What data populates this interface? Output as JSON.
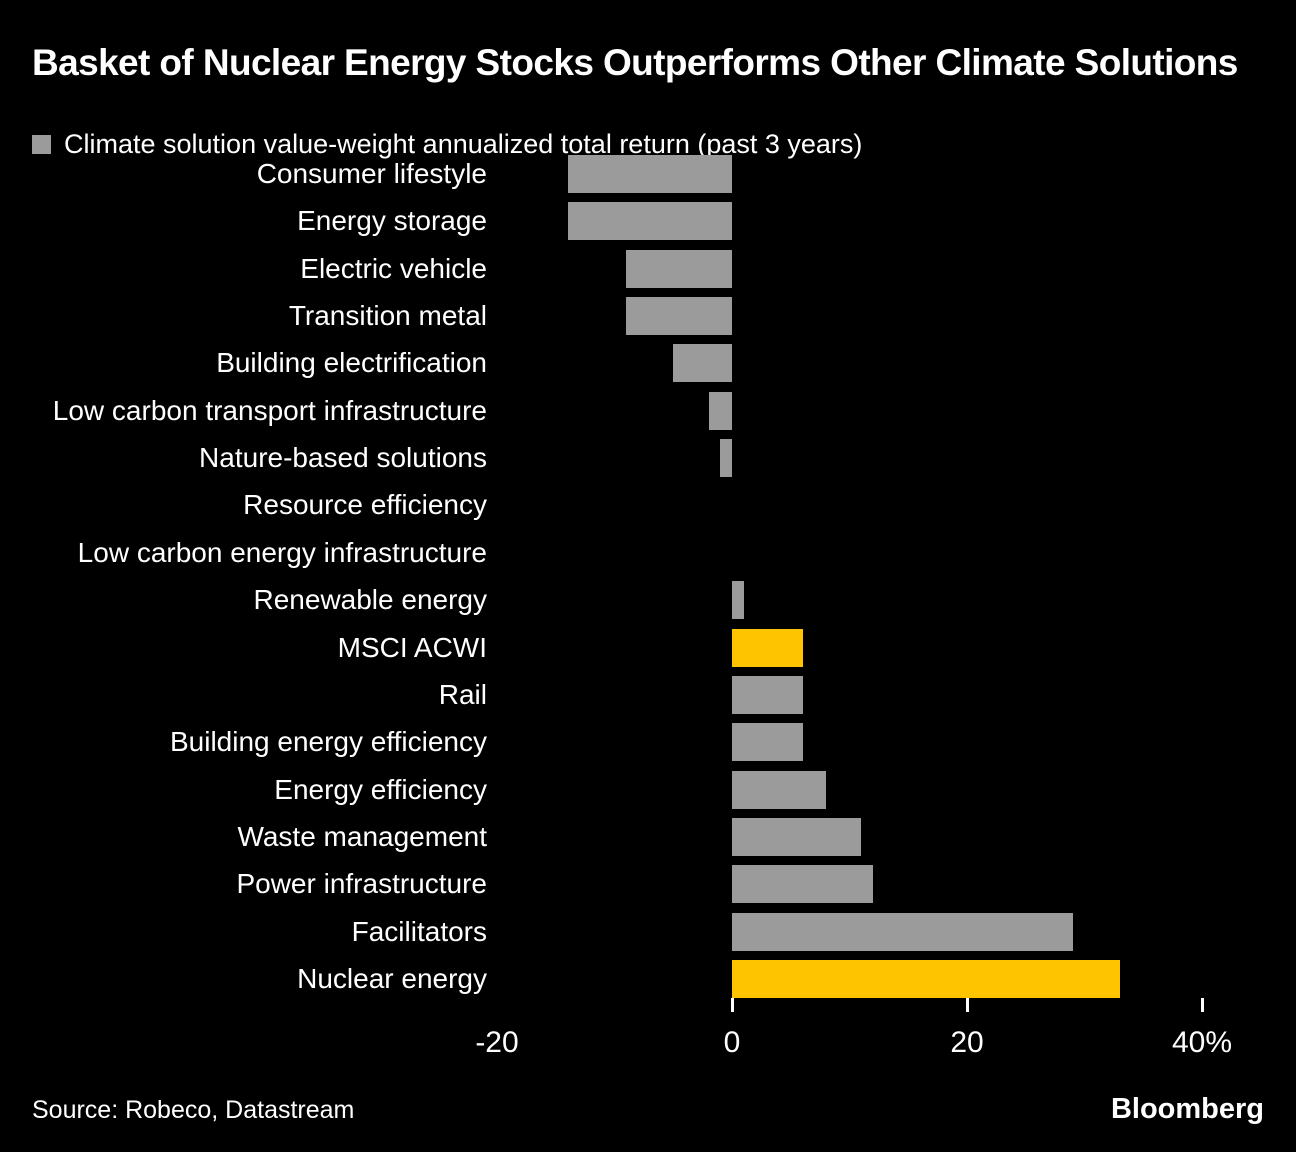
{
  "header": {
    "title": "Basket of Nuclear Energy Stocks Outperforms Other Climate Solutions",
    "legend_label": "Climate solution value-weight annualized total return (past 3 years)"
  },
  "colors": {
    "background": "#000000",
    "text": "#FFFFFF",
    "bar_gray": "#9B9B9B",
    "bar_highlight": "#FFC400"
  },
  "chart_data": {
    "type": "bar",
    "orientation": "horizontal",
    "title": "Basket of Nuclear Energy Stocks Outperforms Other Climate Solutions",
    "legend_entries": [
      "Climate solution value-weight annualized total return (past 3 years)"
    ],
    "legend_position": "top-left",
    "unit": "%",
    "grid": false,
    "categories": [
      "Consumer lifestyle",
      "Energy storage",
      "Electric vehicle",
      "Transition metal",
      "Building electrification",
      "Low carbon transport infrastructure",
      "Nature-based solutions",
      "Resource efficiency",
      "Low carbon energy infrastructure",
      "Renewable energy",
      "MSCI ACWI",
      "Rail",
      "Building energy efficiency",
      "Energy efficiency",
      "Waste management",
      "Power infrastructure",
      "Facilitators",
      "Nuclear energy"
    ],
    "values": [
      -14,
      -14,
      -9,
      -9,
      -5,
      -2,
      -1,
      0,
      0,
      1,
      6,
      6,
      6,
      8,
      11,
      12,
      29,
      33
    ],
    "highlighted_categories": [
      "MSCI ACWI",
      "Nuclear energy"
    ],
    "xlim": [
      -22,
      48
    ],
    "x_ticks": [
      {
        "value": -20,
        "label": "-20",
        "tick_mark": false
      },
      {
        "value": 0,
        "label": "0",
        "tick_mark": true
      },
      {
        "value": 20,
        "label": "20",
        "tick_mark": true
      },
      {
        "value": 40,
        "label": "40%",
        "tick_mark": true
      }
    ]
  },
  "footer": {
    "source": "Source: Robeco, Datastream",
    "brand": "Bloomberg"
  }
}
